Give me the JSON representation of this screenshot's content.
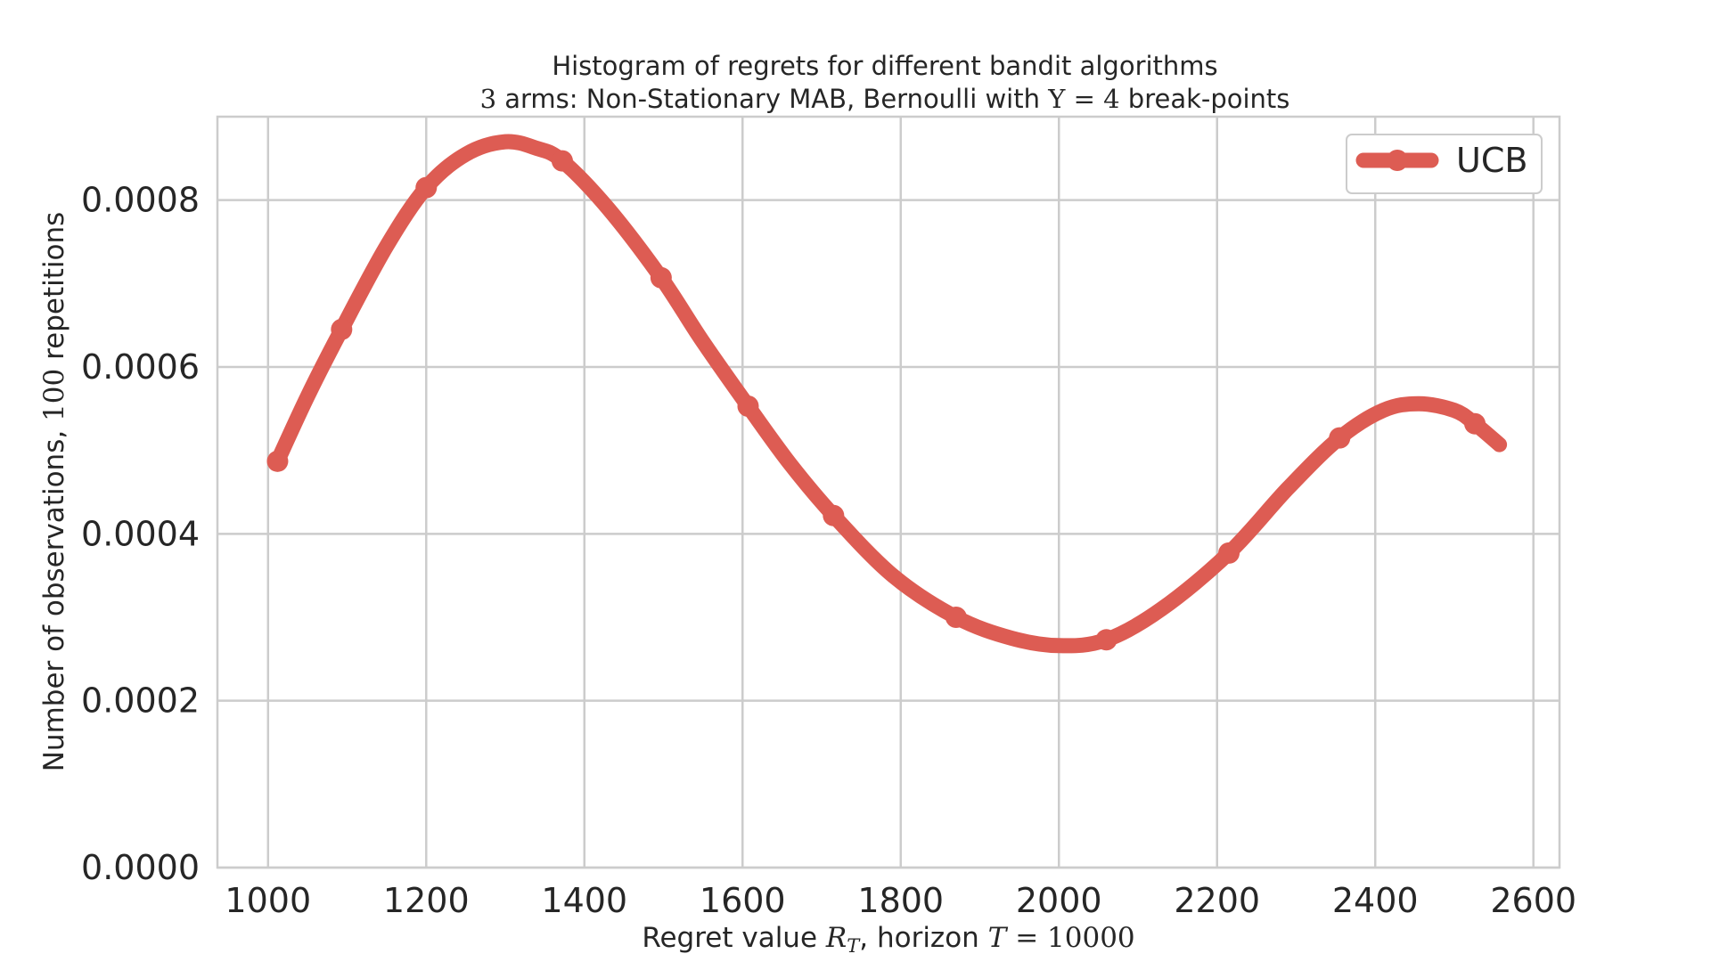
{
  "chart_data": {
    "type": "line",
    "title": "Histogram of regrets for different bandit algorithms",
    "subtitle": {
      "prefix": "3",
      "middle": " arms: Non-Stationary MAB, Bernoulli with ",
      "upsilon": "Υ",
      "equals": " = 4",
      "suffix": " break-points"
    },
    "xlabel": {
      "prefix": "Regret value ",
      "R": "R",
      "sub": "T",
      "middle": ", horizon ",
      "T": "T",
      "equals": " = 10000"
    },
    "ylabel": {
      "prefix": "Number of observations, ",
      "count": "100",
      "suffix": " repetitions"
    },
    "xlim": [
      936,
      2633
    ],
    "ylim": [
      0,
      0.0009
    ],
    "x_ticks": [
      1000,
      1200,
      1400,
      1600,
      1800,
      2000,
      2200,
      2400,
      2600
    ],
    "x_tick_labels": [
      "1000",
      "1200",
      "1400",
      "1600",
      "1800",
      "2000",
      "2200",
      "2400",
      "2600"
    ],
    "y_ticks": [
      0,
      0.0002,
      0.0004,
      0.0006,
      0.0008
    ],
    "y_tick_labels": [
      "0.0000",
      "0.0002",
      "0.0004",
      "0.0006",
      "0.0008"
    ],
    "grid": true,
    "legend_position": "top-right",
    "series": [
      {
        "name": "UCB",
        "color": "#dd5c53",
        "curve_x": [
          1012,
          1050,
          1093,
          1150,
          1200,
          1250,
          1300,
          1340,
          1372,
          1430,
          1497,
          1550,
          1607,
          1660,
          1715,
          1790,
          1870,
          1940,
          2000,
          2060,
          2130,
          2215,
          2290,
          2355,
          2410,
          2455,
          2500,
          2526,
          2557
        ],
        "curve_y": [
          0.000487,
          0.000565,
          0.000645,
          0.000745,
          0.000815,
          0.000855,
          0.00087,
          0.000862,
          0.000847,
          0.00079,
          0.000707,
          0.00063,
          0.000553,
          0.000484,
          0.000422,
          0.00035,
          0.0003,
          0.000275,
          0.000266,
          0.000273,
          0.00031,
          0.000377,
          0.000455,
          0.000515,
          0.000548,
          0.000556,
          0.000548,
          0.000532,
          0.000507
        ],
        "marker_x": [
          1012,
          1093,
          1200,
          1372,
          1497,
          1607,
          1715,
          1870,
          2060,
          2215,
          2355,
          2526
        ],
        "marker_y": [
          0.000487,
          0.000645,
          0.000815,
          0.000847,
          0.000707,
          0.000553,
          0.000422,
          0.0003,
          0.000273,
          0.000377,
          0.000515,
          0.000532
        ]
      }
    ]
  },
  "colors": {
    "grid": "#cccccc",
    "frame": "#cccccc",
    "text": "#262626"
  }
}
